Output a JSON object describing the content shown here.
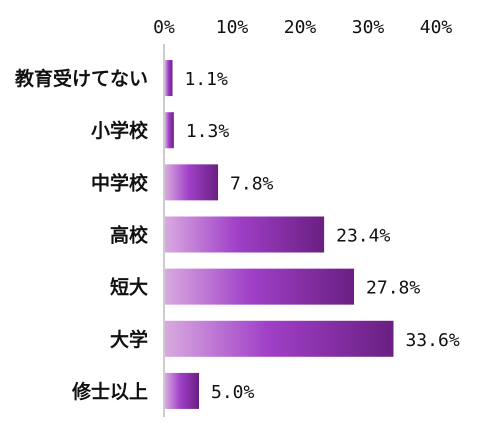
{
  "chart_data": {
    "type": "bar",
    "orientation": "horizontal",
    "categories": [
      "教育受けてない",
      "小学校",
      "中学校",
      "高校",
      "短大",
      "大学",
      "修士以上"
    ],
    "values": [
      1.1,
      1.3,
      7.8,
      23.4,
      27.8,
      33.6,
      5.0
    ],
    "value_labels": [
      "1.1%",
      "1.3%",
      "7.8%",
      "23.4%",
      "27.8%",
      "33.6%",
      "5.0%"
    ],
    "xlim": [
      0,
      40
    ],
    "xticks": [
      0,
      10,
      20,
      30,
      40
    ],
    "xtick_labels": [
      "0%",
      "10%",
      "20%",
      "30%",
      "40%"
    ],
    "axis_position": "top",
    "grid": false,
    "colors": {
      "bar_light": "#d9a9e0",
      "bar_mid": "#a040c8",
      "bar_dark": "#6a1f82"
    }
  }
}
